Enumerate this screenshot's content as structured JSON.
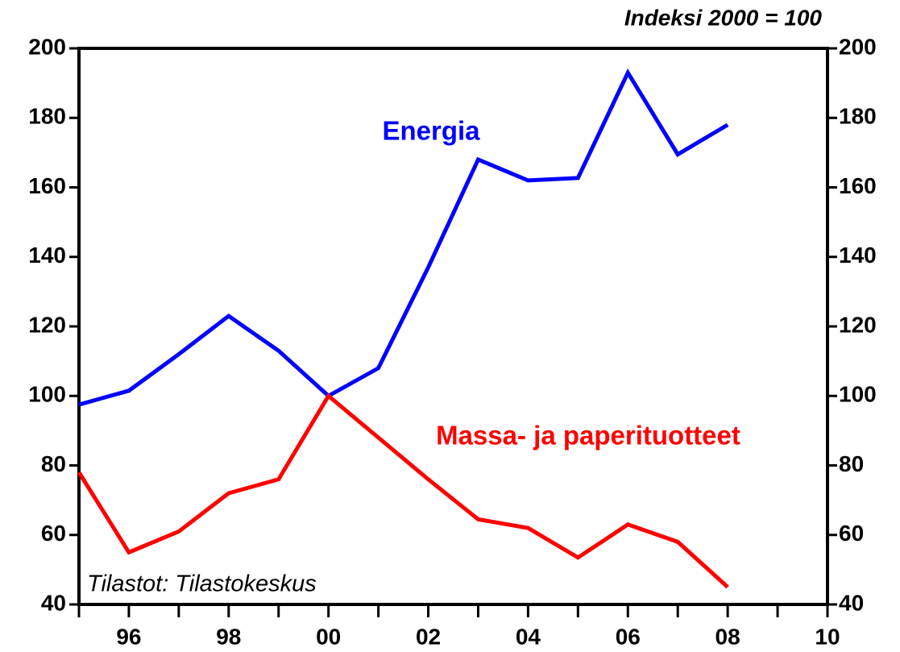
{
  "chart_data": {
    "type": "line",
    "title": "Indeksi 2000 = 100",
    "source": "Tilastot: Tilastokeskus",
    "x": [
      1995,
      1996,
      1997,
      1998,
      1999,
      2000,
      2001,
      2002,
      2003,
      2004,
      2005,
      2006,
      2007,
      2008
    ],
    "series": [
      {
        "name": "Energia",
        "color": "#0000ff",
        "values": [
          97.5,
          101.5,
          112,
          123,
          113,
          100,
          108,
          137,
          168,
          162,
          162.7,
          193,
          169.5,
          178
        ]
      },
      {
        "name": "Massa- ja paperituotteet",
        "color": "#ff0000",
        "values": [
          78,
          55,
          61,
          72,
          76,
          100,
          88,
          76,
          64.5,
          62,
          53.5,
          63,
          58,
          45
        ]
      }
    ],
    "xlim": [
      1995,
      2010
    ],
    "xticks": [
      {
        "value": 1996,
        "label": "96"
      },
      {
        "value": 1998,
        "label": "98"
      },
      {
        "value": 2000,
        "label": "00"
      },
      {
        "value": 2002,
        "label": "02"
      },
      {
        "value": 2004,
        "label": "04"
      },
      {
        "value": 2006,
        "label": "06"
      },
      {
        "value": 2008,
        "label": "08"
      },
      {
        "value": 2010,
        "label": "10"
      }
    ],
    "xminor_ticks": [
      1995,
      1997,
      1999,
      2001,
      2003,
      2005,
      2007,
      2009
    ],
    "ylim": [
      40,
      200
    ],
    "yticks": [
      40,
      60,
      80,
      100,
      120,
      140,
      160,
      180,
      200
    ],
    "y2lim": [
      40,
      200
    ],
    "y2ticks": [
      40,
      60,
      80,
      100,
      120,
      140,
      160,
      180,
      200
    ]
  }
}
